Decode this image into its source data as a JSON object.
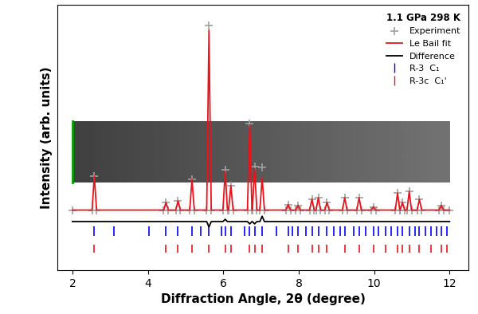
{
  "chart_data": {
    "type": "line",
    "x_label": "Diffraction Angle, 2θ (degree)",
    "y_label": "Intensity (arb. units)",
    "annotations": [
      "1.1 GPa 298 K"
    ],
    "x": [
      2.0,
      2.52,
      2.58,
      2.64,
      4.42,
      4.48,
      4.54,
      4.74,
      4.8,
      4.86,
      5.11,
      5.17,
      5.23,
      5.56,
      5.62,
      5.68,
      5.99,
      6.05,
      6.11,
      6.14,
      6.2,
      6.26,
      6.64,
      6.7,
      6.76,
      6.77,
      6.83,
      6.89,
      6.97,
      7.03,
      7.09,
      7.66,
      7.72,
      7.78,
      7.92,
      7.98,
      8.04,
      8.29,
      8.35,
      8.41,
      8.46,
      8.52,
      8.58,
      8.69,
      8.75,
      8.81,
      9.16,
      9.22,
      9.28,
      9.54,
      9.6,
      9.66,
      9.92,
      9.98,
      10.04,
      10.56,
      10.62,
      10.68,
      10.69,
      10.75,
      10.81,
      10.87,
      10.93,
      10.99,
      11.14,
      11.2,
      11.26,
      11.72,
      11.78,
      11.84,
      12.0
    ],
    "series": [
      {
        "name": "Experiment",
        "color": "#a0a0a0",
        "marker": "plus",
        "line_style": "none",
        "values": [
          78,
          78,
          122,
          78,
          78,
          88,
          78,
          78,
          90,
          78,
          78,
          118,
          78,
          78,
          318,
          78,
          78,
          130,
          78,
          78,
          110,
          78,
          78,
          190,
          78,
          78,
          135,
          78,
          78,
          133,
          78,
          78,
          85,
          78,
          78,
          84,
          78,
          78,
          92,
          78,
          78,
          94,
          78,
          78,
          88,
          78,
          78,
          94,
          78,
          78,
          94,
          78,
          78,
          82,
          78,
          78,
          100,
          78,
          78,
          88,
          78,
          78,
          102,
          78,
          78,
          92,
          78,
          78,
          84,
          78,
          78
        ]
      },
      {
        "name": "Le Bail fit",
        "color": "#e8141c",
        "line_style": "solid",
        "values": [
          78,
          78,
          122,
          78,
          78,
          88,
          78,
          78,
          90,
          78,
          78,
          118,
          78,
          78,
          312,
          78,
          78,
          128,
          78,
          78,
          110,
          78,
          78,
          188,
          78,
          78,
          132,
          78,
          78,
          120,
          78,
          78,
          85,
          78,
          78,
          84,
          78,
          78,
          92,
          78,
          78,
          94,
          78,
          78,
          88,
          78,
          78,
          94,
          78,
          78,
          94,
          78,
          78,
          82,
          78,
          78,
          100,
          78,
          78,
          88,
          78,
          78,
          102,
          78,
          78,
          92,
          78,
          78,
          84,
          78,
          78
        ]
      },
      {
        "name": "Difference",
        "color": "#000000",
        "line_style": "solid",
        "values": [
          63,
          63,
          63,
          63,
          63,
          63,
          63,
          63,
          63,
          63,
          63,
          63,
          63,
          63,
          56,
          63,
          63,
          66,
          63,
          63,
          63,
          63,
          63,
          60,
          63,
          63,
          60,
          63,
          63,
          70,
          63,
          63,
          63,
          63,
          63,
          63,
          63,
          63,
          63,
          63,
          63,
          63,
          63,
          63,
          63,
          63,
          63,
          63,
          63,
          63,
          63,
          63,
          63,
          63,
          63,
          63,
          63,
          63,
          63,
          63,
          63,
          63,
          63,
          63,
          63,
          63,
          63,
          63,
          63,
          63,
          63
        ]
      },
      {
        "name": "R-3  C₁",
        "type": "tick",
        "color": "#0000ff",
        "x": [
          2.58,
          3.1,
          4.02,
          4.48,
          4.8,
          5.17,
          5.4,
          5.62,
          5.95,
          6.05,
          6.2,
          6.57,
          6.7,
          6.83,
          7.03,
          7.4,
          7.72,
          7.83,
          7.98,
          8.2,
          8.35,
          8.52,
          8.75,
          8.92,
          9.1,
          9.22,
          9.45,
          9.6,
          9.78,
          9.98,
          10.12,
          10.3,
          10.45,
          10.62,
          10.75,
          10.93,
          11.08,
          11.2,
          11.35,
          11.5,
          11.65,
          11.78,
          11.92
        ]
      },
      {
        "name": "R-3c  C₁'",
        "type": "tick",
        "color": "#e8141c",
        "x": [
          2.58,
          4.48,
          4.8,
          5.17,
          5.62,
          6.05,
          6.2,
          6.7,
          6.83,
          7.03,
          7.72,
          7.98,
          8.35,
          8.52,
          8.75,
          9.22,
          9.6,
          9.98,
          10.3,
          10.62,
          10.75,
          10.93,
          11.2,
          11.5,
          11.78,
          11.92
        ]
      }
    ],
    "xlim": [
      1.6,
      12.5
    ],
    "xticks": [
      2,
      4,
      6,
      8,
      10,
      12
    ],
    "ylim": [
      0,
      345
    ],
    "yticks": [],
    "tick_labels": "x",
    "legend": "upper right"
  }
}
